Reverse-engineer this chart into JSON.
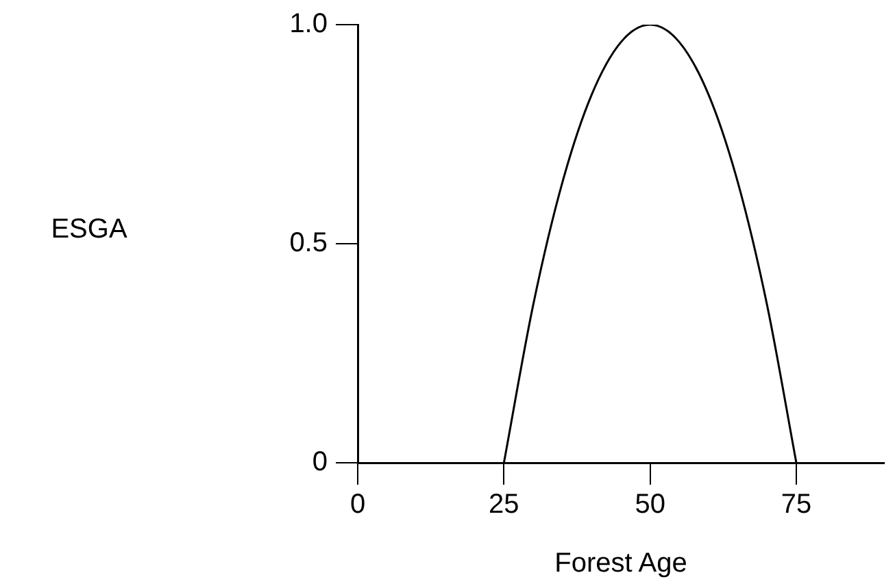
{
  "chart_data": {
    "type": "line",
    "xlabel": "Forest Age",
    "annotations": [
      "ESGA"
    ],
    "x": [
      25,
      30,
      35,
      40,
      45,
      50,
      55,
      60,
      65,
      70,
      75
    ],
    "series": [
      {
        "color": "#000000",
        "values": [
          0,
          0.36,
          0.64,
          0.84,
          0.96,
          1,
          0.96,
          0.84,
          0.64,
          0.36,
          0
        ]
      }
    ],
    "xlim": [
      0,
      90
    ],
    "xticks": [
      0,
      25,
      50,
      75
    ],
    "ylim": [
      0,
      1
    ],
    "yticks": [
      0,
      {
        "value": 0.5,
        "label": "0.5"
      },
      {
        "value": 1,
        "label": "1.0"
      }
    ],
    "grid": false,
    "legend": false,
    "marker": "none",
    "line_style": "solid"
  }
}
